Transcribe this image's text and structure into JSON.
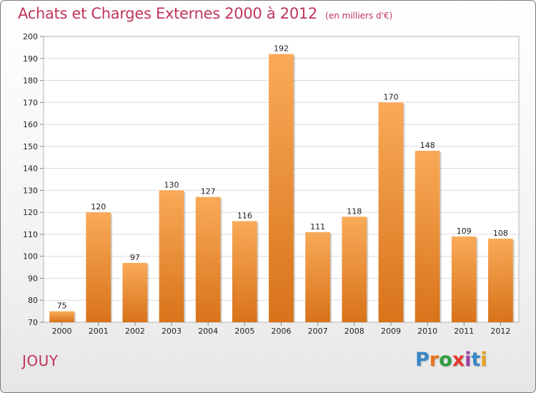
{
  "header": {
    "title": "Achats et Charges Externes 2000 à 2012",
    "unit": "(en milliers d'€)"
  },
  "commune": "JOUY",
  "logo": {
    "text": "Proxiti",
    "letter_colors": [
      "#3a86c8",
      "#e8731c",
      "#2e9e3e",
      "#e43a2e",
      "#9a3ea6",
      "#3a86c8",
      "#e8a01c"
    ]
  },
  "colors": {
    "title": "#c0355a",
    "bar_top": "#f9aa58",
    "bar_bottom": "#d8731a"
  },
  "chart_data": {
    "type": "bar",
    "title": "Achats et Charges Externes 2000 à 2012",
    "categories": [
      "2000",
      "2001",
      "2002",
      "2003",
      "2004",
      "2005",
      "2006",
      "2007",
      "2008",
      "2009",
      "2010",
      "2011",
      "2012"
    ],
    "values": [
      75,
      120,
      97,
      130,
      127,
      116,
      192,
      111,
      118,
      170,
      148,
      109,
      108
    ],
    "xlabel": "",
    "ylabel": "",
    "ylim": [
      70,
      200
    ],
    "yticks": [
      70,
      80,
      90,
      100,
      110,
      120,
      130,
      140,
      150,
      160,
      170,
      180,
      190,
      200
    ],
    "grid": true,
    "legend": false
  }
}
